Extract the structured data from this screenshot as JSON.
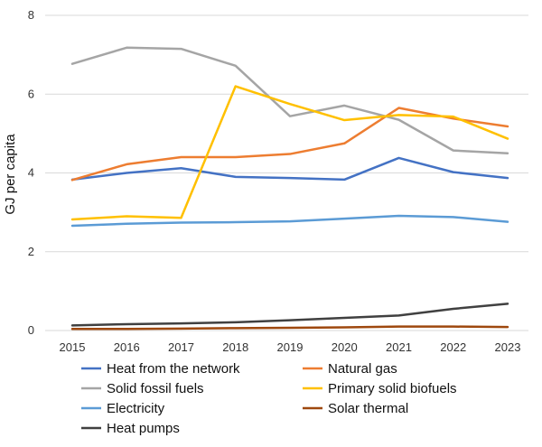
{
  "chart_data": {
    "type": "line",
    "title": "",
    "xlabel": "",
    "ylabel": "GJ per capita",
    "ylim": [
      0,
      8
    ],
    "yticks": [
      0,
      2,
      4,
      6,
      8
    ],
    "grid": true,
    "legend_position": "bottom",
    "categories": [
      "2015",
      "2016",
      "2017",
      "2018",
      "2019",
      "2020",
      "2021",
      "2022",
      "2023"
    ],
    "series": [
      {
        "name": "Heat from the network",
        "color": "#4472C4",
        "values": [
          3.83,
          4.0,
          4.12,
          3.9,
          3.87,
          3.83,
          4.38,
          4.02,
          3.87
        ]
      },
      {
        "name": "Natural gas",
        "color": "#ED7D31",
        "values": [
          3.82,
          4.22,
          4.4,
          4.4,
          4.48,
          4.75,
          5.65,
          5.38,
          5.18
        ]
      },
      {
        "name": "Solid fossil fuels",
        "color": "#A5A5A5",
        "values": [
          6.77,
          7.18,
          7.15,
          6.72,
          5.44,
          5.71,
          5.35,
          4.57,
          4.5
        ]
      },
      {
        "name": "Primary solid biofuels",
        "color": "#FFC000",
        "values": [
          2.82,
          2.9,
          2.86,
          6.2,
          5.75,
          5.34,
          5.47,
          5.43,
          4.87
        ]
      },
      {
        "name": "Electricity",
        "color": "#5B9BD5",
        "values": [
          2.66,
          2.71,
          2.74,
          2.75,
          2.77,
          2.84,
          2.91,
          2.88,
          2.76
        ]
      },
      {
        "name": "Solar thermal",
        "color": "#9E480E",
        "values": [
          0.04,
          0.04,
          0.05,
          0.06,
          0.07,
          0.08,
          0.1,
          0.1,
          0.09
        ]
      },
      {
        "name": "Heat pumps",
        "color": "#404040",
        "values": [
          0.13,
          0.16,
          0.18,
          0.21,
          0.26,
          0.32,
          0.38,
          0.55,
          0.68
        ]
      }
    ]
  }
}
